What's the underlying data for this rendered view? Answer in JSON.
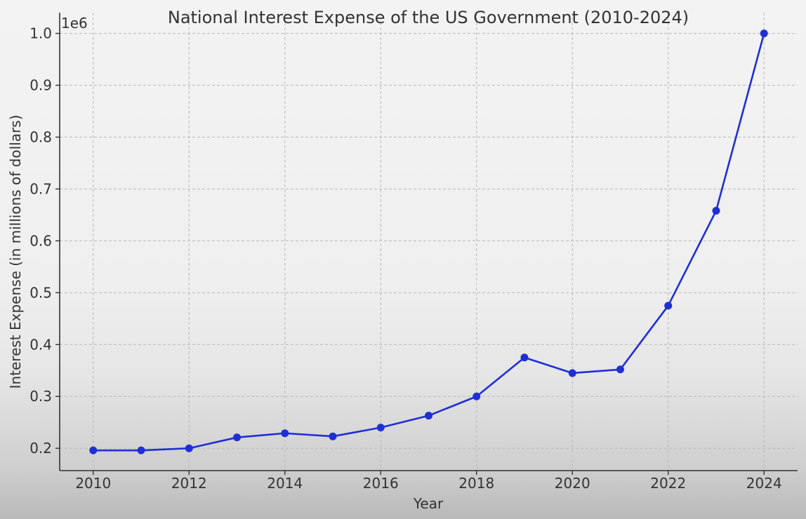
{
  "chart_data": {
    "type": "line",
    "title": "National Interest Expense of the US Government (2010-2024)",
    "xlabel": "Year",
    "ylabel": "Interest Expense (in millions of dollars)",
    "y_scale_label": "1e6",
    "x": [
      2010,
      2011,
      2012,
      2013,
      2014,
      2015,
      2016,
      2017,
      2018,
      2019,
      2020,
      2021,
      2022,
      2023,
      2024
    ],
    "series": [
      {
        "values": [
          196000,
          196000,
          200000,
          221000,
          229000,
          223000,
          240000,
          263000,
          300000,
          375000,
          345000,
          352000,
          475000,
          658000,
          1000000
        ],
        "color": "#1f2fd6",
        "marker": "circle"
      }
    ],
    "xticks": [
      2010,
      2012,
      2014,
      2016,
      2018,
      2020,
      2022,
      2024
    ],
    "xtick_labels": [
      "2010",
      "2012",
      "2014",
      "2016",
      "2018",
      "2020",
      "2022",
      "2024"
    ],
    "yticks": [
      200000,
      300000,
      400000,
      500000,
      600000,
      700000,
      800000,
      900000,
      1000000
    ],
    "ytick_labels": [
      "0.2",
      "0.3",
      "0.4",
      "0.5",
      "0.6",
      "0.7",
      "0.8",
      "0.9",
      "1.0"
    ],
    "xlim": [
      2009.3,
      2024.7
    ],
    "ylim": [
      157000,
      1040000
    ],
    "grid": true,
    "legend": "none"
  }
}
